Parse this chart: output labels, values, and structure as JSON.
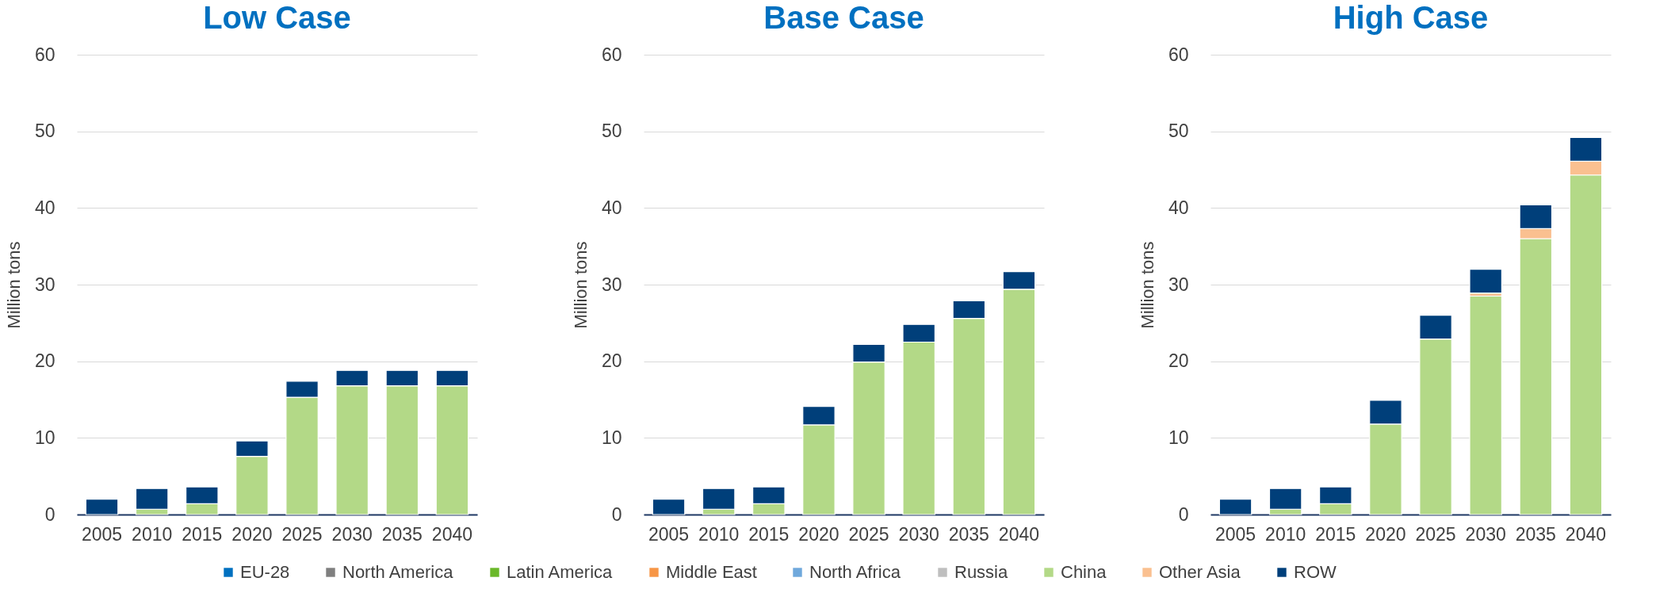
{
  "chart_data": [
    {
      "type": "bar",
      "title": "Low Case",
      "ylabel": "Million tons",
      "categories": [
        "2005",
        "2010",
        "2015",
        "2020",
        "2025",
        "2030",
        "2035",
        "2040"
      ],
      "stacked": true,
      "ylim": [
        0,
        60
      ],
      "yticks": [
        0,
        10,
        20,
        30,
        40,
        50,
        60
      ],
      "grid": "y",
      "legend": "bottom",
      "series": [
        {
          "name": "EU-28",
          "color": "#0070c0",
          "values": [
            null,
            null,
            null,
            null,
            null,
            null,
            null,
            null
          ]
        },
        {
          "name": "North America",
          "color": "#7f7f7f",
          "values": [
            null,
            null,
            null,
            null,
            null,
            null,
            null,
            null
          ]
        },
        {
          "name": "Latin America",
          "color": "#6ab82a",
          "values": [
            null,
            null,
            null,
            null,
            null,
            null,
            null,
            null
          ]
        },
        {
          "name": "Middle East",
          "color": "#f79646",
          "values": [
            null,
            null,
            null,
            null,
            null,
            null,
            null,
            null
          ]
        },
        {
          "name": "North Africa",
          "color": "#6fa8dc",
          "values": [
            null,
            null,
            null,
            null,
            null,
            null,
            null,
            null
          ]
        },
        {
          "name": "Russia",
          "color": "#bfbfbf",
          "values": [
            null,
            null,
            null,
            null,
            null,
            null,
            null,
            null
          ]
        },
        {
          "name": "China",
          "color": "#b3d987",
          "values": [
            null,
            0.7,
            1.4,
            7.6,
            15.3,
            16.8,
            16.8,
            16.8
          ]
        },
        {
          "name": "Other Asia",
          "color": "#fac090",
          "values": [
            null,
            null,
            null,
            null,
            null,
            null,
            null,
            null
          ]
        },
        {
          "name": "ROW",
          "color": "#003f7a",
          "values": [
            2.0,
            2.7,
            2.2,
            2.0,
            2.1,
            2.0,
            2.0,
            2.0
          ]
        }
      ]
    },
    {
      "type": "bar",
      "title": "Base Case",
      "ylabel": "Million tons",
      "categories": [
        "2005",
        "2010",
        "2015",
        "2020",
        "2025",
        "2030",
        "2035",
        "2040"
      ],
      "stacked": true,
      "ylim": [
        0,
        60
      ],
      "yticks": [
        0,
        10,
        20,
        30,
        40,
        50,
        60
      ],
      "grid": "y",
      "series": [
        {
          "color": "#b3d987",
          "values": [
            null,
            0.7,
            1.4,
            11.7,
            19.9,
            22.5,
            25.6,
            29.4
          ]
        },
        {
          "color": "#003f7a",
          "values": [
            2.0,
            2.7,
            2.2,
            2.4,
            2.3,
            2.3,
            2.3,
            2.3
          ]
        }
      ]
    },
    {
      "type": "bar",
      "title": "High Case",
      "ylabel": "Million tons",
      "categories": [
        "2005",
        "2010",
        "2015",
        "2020",
        "2025",
        "2030",
        "2035",
        "2040"
      ],
      "stacked": true,
      "ylim": [
        0,
        60
      ],
      "yticks": [
        0,
        10,
        20,
        30,
        40,
        50,
        60
      ],
      "grid": "y",
      "series": [
        {
          "color": "#b3d987",
          "values": [
            null,
            0.7,
            1.4,
            11.8,
            22.9,
            28.5,
            36.0,
            44.3
          ]
        },
        {
          "color": "#fac090",
          "values": [
            null,
            null,
            null,
            null,
            null,
            0.4,
            1.3,
            1.8
          ]
        },
        {
          "color": "#003f7a",
          "values": [
            2.0,
            2.7,
            2.2,
            3.1,
            3.1,
            3.1,
            3.1,
            3.1
          ]
        }
      ]
    }
  ]
}
